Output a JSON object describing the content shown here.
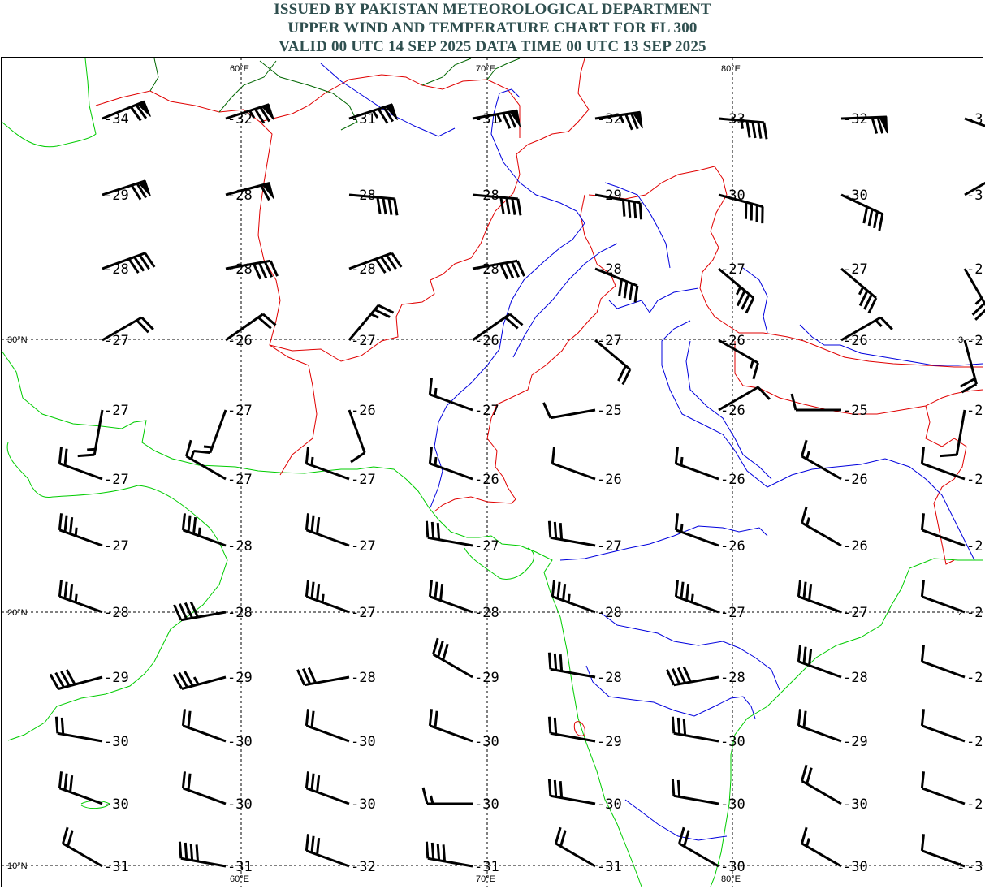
{
  "header": {
    "line1": "ISSUED BY PAKISTAN METEOROLOGICAL DEPARTMENT",
    "line2": "UPPER WIND AND TEMPERATURE CHART FOR FL 300",
    "line3": "VALID 00 UTC 14 SEP 2025 DATA TIME 00 UTC 13 SEP 2025",
    "color": "#2f4f4f"
  },
  "colors": {
    "coastline": "#00cc00",
    "borders": "#e00000",
    "rivers": "#0000dd",
    "admin": "#006600"
  },
  "axes": {
    "lon_top": [
      "60°E",
      "70°E",
      "80°E"
    ],
    "lon_bottom": [
      "60°E",
      "70°E",
      "80°E"
    ],
    "lat_left": [
      "30°N",
      "20°N",
      "10°N"
    ],
    "lat_right": [
      "3",
      "2",
      "1"
    ]
  },
  "rows": [
    {
      "temps": [
        "-34",
        "-32",
        "-31",
        "-31",
        "-32",
        "-33",
        "-32",
        "-3"
      ],
      "winds": [
        [
          68,
          70
        ],
        [
          72,
          75
        ],
        [
          72,
          75
        ],
        [
          80,
          75
        ],
        [
          82,
          75
        ],
        [
          95,
          45
        ],
        [
          88,
          70
        ],
        [
          110,
          75
        ]
      ]
    },
    {
      "temps": [
        "-29",
        "-28",
        "-28",
        "-28",
        "-29",
        "-30",
        "-30",
        "-3"
      ],
      "winds": [
        [
          72,
          70
        ],
        [
          75,
          60
        ],
        [
          95,
          40
        ],
        [
          95,
          40
        ],
        [
          100,
          40
        ],
        [
          105,
          40
        ],
        [
          115,
          40
        ],
        [
          60,
          40
        ]
      ]
    },
    {
      "temps": [
        "-28",
        "-28",
        "-28",
        "-28",
        "-28",
        "-27",
        "-27",
        "-2"
      ],
      "winds": [
        [
          70,
          40
        ],
        [
          80,
          40
        ],
        [
          70,
          40
        ],
        [
          80,
          40
        ],
        [
          112,
          40
        ],
        [
          130,
          35
        ],
        [
          130,
          35
        ],
        [
          150,
          25
        ]
      ]
    },
    {
      "temps": [
        "-27",
        "-26",
        "-27",
        "-26",
        "-27",
        "-26",
        "-26",
        "-2"
      ],
      "winds": [
        [
          60,
          20
        ],
        [
          55,
          20
        ],
        [
          40,
          25
        ],
        [
          55,
          20
        ],
        [
          130,
          20
        ],
        [
          120,
          15
        ],
        [
          60,
          15
        ],
        [
          165,
          20
        ]
      ]
    },
    {
      "temps": [
        "-27",
        "-27",
        "-26",
        "-27",
        "-25",
        "-26",
        "-25",
        "-2"
      ],
      "winds": [
        [
          190,
          15
        ],
        [
          200,
          15
        ],
        [
          160,
          10
        ],
        [
          290,
          15
        ],
        [
          260,
          10
        ],
        [
          60,
          10
        ],
        [
          270,
          10
        ],
        [
          190,
          10
        ]
      ]
    },
    {
      "temps": [
        "-27",
        "-27",
        "-27",
        "-26",
        "-26",
        "-26",
        "-26",
        "-2"
      ],
      "winds": [
        [
          290,
          20
        ],
        [
          300,
          15
        ],
        [
          290,
          15
        ],
        [
          290,
          15
        ],
        [
          290,
          10
        ],
        [
          290,
          15
        ],
        [
          300,
          15
        ],
        [
          290,
          10
        ]
      ]
    },
    {
      "temps": [
        "-27",
        "-28",
        "-27",
        "-27",
        "-27",
        "-26",
        "-26",
        "-2"
      ],
      "winds": [
        [
          290,
          35
        ],
        [
          290,
          35
        ],
        [
          290,
          30
        ],
        [
          280,
          30
        ],
        [
          280,
          30
        ],
        [
          290,
          15
        ],
        [
          300,
          15
        ],
        [
          290,
          10
        ]
      ]
    },
    {
      "temps": [
        "-28",
        "-28",
        "-27",
        "-28",
        "-28",
        "-27",
        "-27",
        "-2"
      ],
      "winds": [
        [
          290,
          35
        ],
        [
          260,
          40
        ],
        [
          290,
          35
        ],
        [
          290,
          30
        ],
        [
          290,
          35
        ],
        [
          290,
          35
        ],
        [
          290,
          30
        ],
        [
          290,
          10
        ]
      ]
    },
    {
      "temps": [
        "-29",
        "-29",
        "-28",
        "-29",
        "-28",
        "-28",
        "-28",
        "-2"
      ],
      "winds": [
        [
          255,
          40
        ],
        [
          255,
          35
        ],
        [
          260,
          30
        ],
        [
          300,
          30
        ],
        [
          280,
          30
        ],
        [
          260,
          40
        ],
        [
          290,
          30
        ],
        [
          290,
          10
        ]
      ]
    },
    {
      "temps": [
        "-30",
        "-30",
        "-30",
        "-30",
        "-29",
        "-30",
        "-29",
        "-2"
      ],
      "winds": [
        [
          280,
          20
        ],
        [
          290,
          20
        ],
        [
          290,
          20
        ],
        [
          290,
          20
        ],
        [
          280,
          20
        ],
        [
          280,
          30
        ],
        [
          290,
          20
        ],
        [
          290,
          10
        ]
      ]
    },
    {
      "temps": [
        "-30",
        "-30",
        "-30",
        "-30",
        "-30",
        "-30",
        "-30",
        "-2"
      ],
      "winds": [
        [
          290,
          30
        ],
        [
          290,
          20
        ],
        [
          290,
          30
        ],
        [
          270,
          15
        ],
        [
          280,
          30
        ],
        [
          280,
          20
        ],
        [
          300,
          20
        ],
        [
          290,
          10
        ]
      ]
    },
    {
      "temps": [
        "-31",
        "-31",
        "-32",
        "-31",
        "-31",
        "-30",
        "-30",
        "-3"
      ],
      "winds": [
        [
          300,
          20
        ],
        [
          280,
          40
        ],
        [
          290,
          30
        ],
        [
          280,
          40
        ],
        [
          300,
          20
        ],
        [
          300,
          20
        ],
        [
          300,
          15
        ],
        [
          290,
          10
        ]
      ]
    }
  ]
}
